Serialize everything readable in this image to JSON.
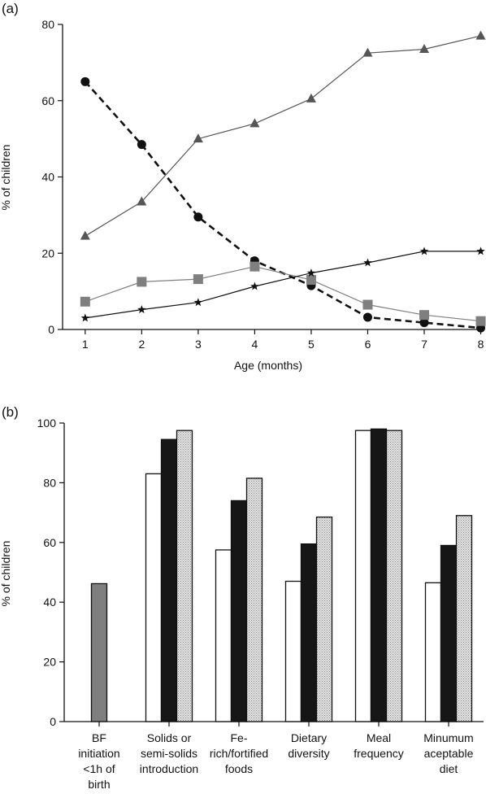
{
  "chart_data": [
    {
      "panel_label": "(a)",
      "type": "line",
      "xlabel": "Age (months)",
      "ylabel": "% of children",
      "x": [
        1,
        2,
        3,
        4,
        5,
        6,
        7,
        8
      ],
      "xlim": [
        0.6,
        8.05
      ],
      "ylim": [
        0,
        80
      ],
      "xticks": [
        1,
        2,
        3,
        4,
        5,
        6,
        7,
        8
      ],
      "yticks": [
        0,
        20,
        40,
        60,
        80
      ],
      "grid": false,
      "series": [
        {
          "marker": "triangle",
          "line": "solid",
          "color": "#555555",
          "values": [
            24.5,
            33.5,
            50,
            54,
            60.5,
            72.5,
            73.5,
            77
          ]
        },
        {
          "marker": "circle",
          "line": "dashed",
          "color": "#111111",
          "values": [
            65,
            48.5,
            29.5,
            18,
            11.5,
            3.2,
            1.8,
            0.4
          ]
        },
        {
          "marker": "square",
          "line": "solid",
          "color": "#7f7f7f",
          "values": [
            7.3,
            12.5,
            13.2,
            16.5,
            13,
            6.5,
            3.8,
            2.2
          ]
        },
        {
          "marker": "star",
          "line": "solid",
          "color": "#111111",
          "values": [
            3,
            5.2,
            7.1,
            11.3,
            14.8,
            17.5,
            20.5,
            20.5
          ]
        }
      ]
    },
    {
      "panel_label": "(b)",
      "type": "bar",
      "ylabel": "% of children",
      "ylim": [
        0,
        100
      ],
      "yticks": [
        0,
        20,
        40,
        60,
        80,
        100
      ],
      "grid": false,
      "categories": [
        [
          "BF",
          "initiation",
          "<1h of",
          "birth"
        ],
        [
          "Solids or",
          "semi-solids",
          "introduction"
        ],
        [
          "Fe-",
          "rich/fortified",
          "foods"
        ],
        [
          "Dietary",
          "diversity"
        ],
        [
          "Meal",
          "frequency"
        ],
        [
          "Minumum",
          "aceptable",
          "diet"
        ]
      ],
      "series": [
        {
          "fill": "white",
          "values": [
            null,
            83,
            57.5,
            47,
            97.5,
            46.5
          ]
        },
        {
          "fill": "black",
          "values": [
            null,
            94.5,
            74,
            59.5,
            98,
            59
          ]
        },
        {
          "fill": "dotted",
          "values": [
            null,
            97.5,
            81.5,
            68.5,
            97.5,
            69
          ]
        }
      ],
      "single_bars": [
        {
          "category_index": 0,
          "fill": "grey",
          "value": 46.2
        }
      ]
    }
  ]
}
